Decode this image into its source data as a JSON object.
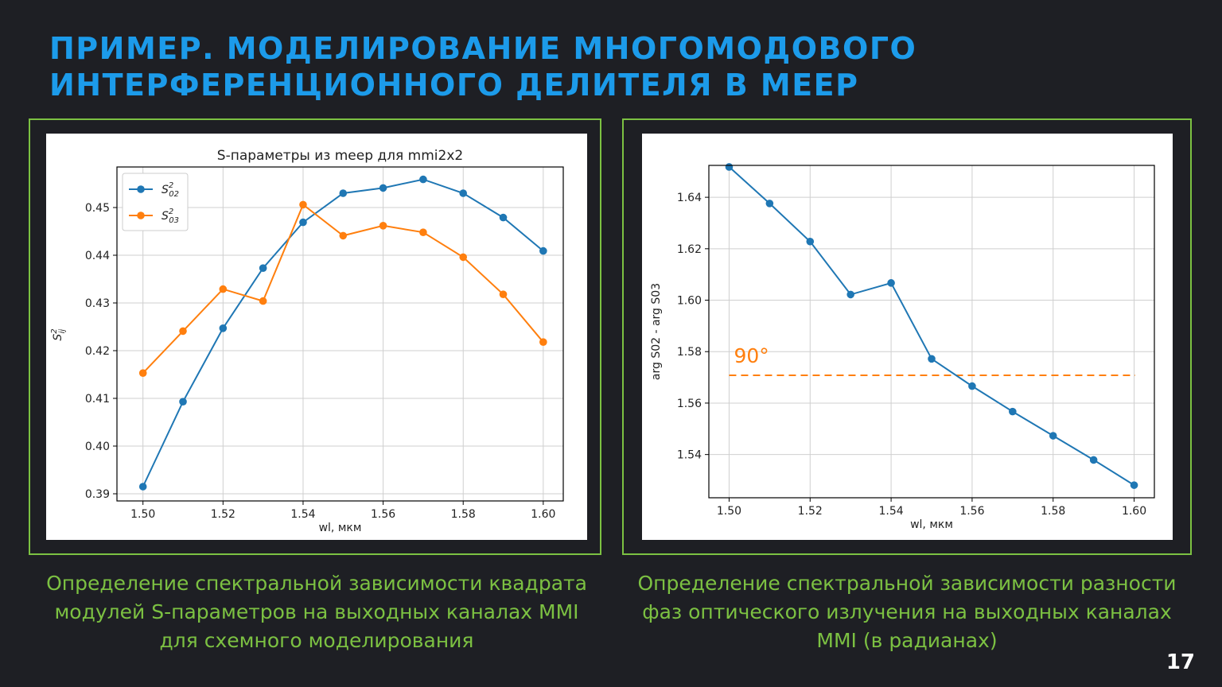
{
  "slide": {
    "title_line1": "ПРИМЕР. МОДЕЛИРОВАНИЕ МНОГОМОДОВОГО",
    "title_line2": "ИНТЕРФЕРЕНЦИОННОГО ДЕЛИТЕЛЯ В MEEP",
    "caption_left": [
      "Определение спектральной зависимости квадрата",
      "модулей S-параметров на выходных каналах MMI",
      "для схемного моделирования"
    ],
    "caption_right": [
      "Определение спектральной зависимости разности",
      "фаз оптического излучения на выходных каналах",
      "MMI (в радианах)"
    ],
    "page_number": "17",
    "colors": {
      "title": "#1c9bea",
      "caption": "#7cc142",
      "border": "#7cc142",
      "series1": "#1f77b4",
      "series2": "#ff7f0e"
    }
  },
  "chart_data": [
    {
      "type": "line",
      "title": "S-параметры из meep для mmi2x2",
      "xlabel": "wl, мкм",
      "ylabel": "S_ij^2",
      "x": [
        1.5,
        1.51,
        1.52,
        1.53,
        1.54,
        1.55,
        1.56,
        1.57,
        1.58,
        1.59,
        1.6
      ],
      "xlim": [
        1.4935,
        1.605
      ],
      "ylim": [
        0.3885,
        0.4585
      ],
      "xticks": [
        "1.50",
        "1.52",
        "1.54",
        "1.56",
        "1.58",
        "1.60"
      ],
      "yticks": [
        "0.39",
        "0.40",
        "0.41",
        "0.42",
        "0.43",
        "0.44",
        "0.45"
      ],
      "grid": true,
      "legend_position": "top-left",
      "series": [
        {
          "name": "S02",
          "label_base": "S",
          "label_sup": "2",
          "label_sub": "02",
          "color": "#1f77b4",
          "values": [
            0.3915,
            0.4093,
            0.4247,
            0.4373,
            0.4469,
            0.453,
            0.4541,
            0.4559,
            0.453,
            0.4479,
            0.4409
          ]
        },
        {
          "name": "S03",
          "label_base": "S",
          "label_sup": "2",
          "label_sub": "03",
          "color": "#ff7f0e",
          "values": [
            0.4153,
            0.4241,
            0.4329,
            0.4304,
            0.4506,
            0.4441,
            0.4462,
            0.4448,
            0.4396,
            0.4318,
            0.4218
          ]
        }
      ]
    },
    {
      "type": "line",
      "title": "",
      "xlabel": "wl, мкм",
      "ylabel": "arg S02 - arg S03",
      "x": [
        1.5,
        1.51,
        1.52,
        1.53,
        1.54,
        1.55,
        1.56,
        1.57,
        1.58,
        1.59,
        1.6
      ],
      "xlim": [
        1.495,
        1.605
      ],
      "ylim": [
        1.5232,
        1.6524
      ],
      "xticks": [
        "1.50",
        "1.52",
        "1.54",
        "1.56",
        "1.58",
        "1.60"
      ],
      "yticks": [
        "1.54",
        "1.56",
        "1.58",
        "1.60",
        "1.62",
        "1.64"
      ],
      "grid": true,
      "series": [
        {
          "name": "arg S02 - arg S03",
          "color": "#1f77b4",
          "values": [
            1.6518,
            1.6376,
            1.6228,
            1.6022,
            1.6067,
            1.5772,
            1.5666,
            1.5567,
            1.5473,
            1.5379,
            1.5281
          ]
        }
      ],
      "reference_line": {
        "label": "90°",
        "value": 1.5708,
        "color": "#ff7f0e",
        "style": "dashed"
      }
    }
  ]
}
